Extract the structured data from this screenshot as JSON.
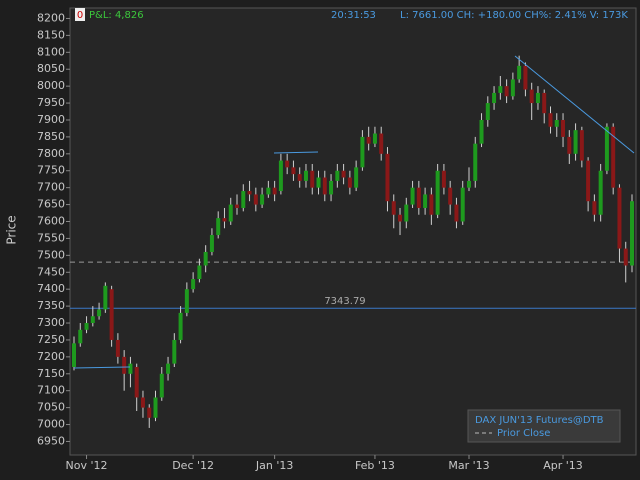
{
  "header": {
    "badge": "0",
    "pnl": "P&L: 4,826",
    "time": "20:31:53",
    "quote": "L: 7661.00 CH: +180.00 CH%: 2.41% V: 173K"
  },
  "chart_data": {
    "type": "candlestick",
    "y_label": "Price",
    "categories": [
      null,
      null,
      "Nov '12",
      null,
      null,
      null,
      null,
      null,
      null,
      null,
      null,
      null,
      null,
      null,
      null,
      null,
      null,
      null,
      null,
      "Dec '12",
      null,
      null,
      null,
      null,
      null,
      null,
      null,
      null,
      null,
      null,
      null,
      null,
      "Jan '13",
      null,
      null,
      null,
      null,
      null,
      null,
      null,
      null,
      null,
      null,
      null,
      null,
      null,
      null,
      null,
      "Feb '13",
      null,
      null,
      null,
      null,
      null,
      null,
      null,
      null,
      null,
      null,
      null,
      null,
      null,
      null,
      "Mar '13",
      null,
      null,
      null,
      null,
      null,
      null,
      null,
      null,
      null,
      null,
      null,
      null,
      null,
      null,
      "Apr '13",
      null,
      null,
      null,
      null,
      null,
      null,
      null,
      null,
      null,
      null,
      null
    ],
    "open": [
      7170,
      7240,
      7280,
      7300,
      7320,
      7340,
      7400,
      7250,
      7200,
      7150,
      7170,
      7080,
      7050,
      7020,
      7080,
      7150,
      7180,
      7250,
      7330,
      7400,
      7430,
      7470,
      7510,
      7560,
      7610,
      7600,
      7650,
      7640,
      7690,
      7680,
      7650,
      7680,
      7700,
      7690,
      7780,
      7760,
      7740,
      7720,
      7750,
      7700,
      7730,
      7680,
      7720,
      7750,
      7730,
      7700,
      7760,
      7850,
      7830,
      7860,
      7800,
      7660,
      7620,
      7600,
      7650,
      7700,
      7640,
      7680,
      7620,
      7750,
      7700,
      7650,
      7600,
      7700,
      7720,
      7830,
      7900,
      7950,
      7980,
      8000,
      7970,
      8020,
      8060,
      7990,
      7950,
      7980,
      7920,
      7880,
      7900,
      7850,
      7800,
      7870,
      7780,
      7660,
      7620,
      7750,
      7880,
      7700,
      7520,
      7470
    ],
    "high": [
      7260,
      7300,
      7320,
      7350,
      7360,
      7420,
      7410,
      7270,
      7220,
      7200,
      7180,
      7100,
      7060,
      7100,
      7170,
      7200,
      7270,
      7350,
      7420,
      7450,
      7490,
      7530,
      7580,
      7630,
      7640,
      7670,
      7680,
      7710,
      7720,
      7700,
      7700,
      7720,
      7720,
      7800,
      7800,
      7780,
      7760,
      7770,
      7770,
      7750,
      7750,
      7740,
      7770,
      7770,
      7750,
      7780,
      7870,
      7880,
      7880,
      7880,
      7820,
      7680,
      7640,
      7670,
      7720,
      7720,
      7700,
      7700,
      7770,
      7770,
      7720,
      7670,
      7720,
      7760,
      7850,
      7920,
      7970,
      8000,
      8030,
      8020,
      8040,
      8090,
      8070,
      8010,
      8000,
      7990,
      7940,
      7920,
      7920,
      7870,
      7890,
      7880,
      7790,
      7680,
      7770,
      7890,
      7890,
      7710,
      7540,
      7680
    ],
    "low": [
      7160,
      7230,
      7270,
      7290,
      7310,
      7330,
      7230,
      7180,
      7100,
      7110,
      7040,
      7020,
      6990,
      7010,
      7070,
      7130,
      7170,
      7240,
      7320,
      7390,
      7420,
      7450,
      7500,
      7550,
      7580,
      7590,
      7620,
      7630,
      7660,
      7630,
      7640,
      7670,
      7660,
      7680,
      7740,
      7720,
      7700,
      7700,
      7680,
      7680,
      7660,
      7660,
      7700,
      7710,
      7680,
      7690,
      7750,
      7810,
      7820,
      7780,
      7630,
      7580,
      7560,
      7580,
      7640,
      7620,
      7620,
      7590,
      7610,
      7680,
      7620,
      7580,
      7590,
      7690,
      7700,
      7820,
      7880,
      7930,
      7960,
      7950,
      7960,
      8010,
      7970,
      7900,
      7930,
      7890,
      7860,
      7850,
      7820,
      7770,
      7780,
      7760,
      7630,
      7600,
      7600,
      7740,
      7680,
      7480,
      7420,
      7450
    ],
    "close": [
      7240,
      7280,
      7300,
      7320,
      7340,
      7410,
      7250,
      7200,
      7150,
      7180,
      7080,
      7050,
      7020,
      7080,
      7150,
      7180,
      7250,
      7330,
      7400,
      7430,
      7470,
      7510,
      7560,
      7610,
      7600,
      7650,
      7640,
      7690,
      7680,
      7650,
      7680,
      7700,
      7680,
      7780,
      7760,
      7740,
      7720,
      7750,
      7700,
      7730,
      7680,
      7720,
      7750,
      7730,
      7700,
      7760,
      7850,
      7830,
      7860,
      7800,
      7660,
      7620,
      7600,
      7650,
      7700,
      7640,
      7680,
      7620,
      7750,
      7700,
      7650,
      7600,
      7700,
      7720,
      7830,
      7900,
      7950,
      7980,
      8000,
      7970,
      8020,
      8060,
      7990,
      7950,
      7980,
      7920,
      7880,
      7900,
      7850,
      7800,
      7870,
      7780,
      7660,
      7620,
      7750,
      7880,
      7700,
      7520,
      7470,
      7660
    ],
    "up_color": "#1e9a1e",
    "down_color": "#8a1818",
    "ylim": [
      6910,
      8225
    ],
    "yticks": [
      6950,
      7000,
      7050,
      7100,
      7150,
      7200,
      7250,
      7300,
      7350,
      7400,
      7450,
      7500,
      7550,
      7600,
      7650,
      7700,
      7750,
      7800,
      7850,
      7900,
      7950,
      8000,
      8050,
      8100,
      8150,
      8200
    ],
    "reference_line": 7343.79,
    "reference_color": "#3a78c8",
    "prior_close": 7480,
    "legend": {
      "title": "DAX JUN'13 Futures@DTB",
      "items": [
        "Prior Close"
      ]
    }
  }
}
